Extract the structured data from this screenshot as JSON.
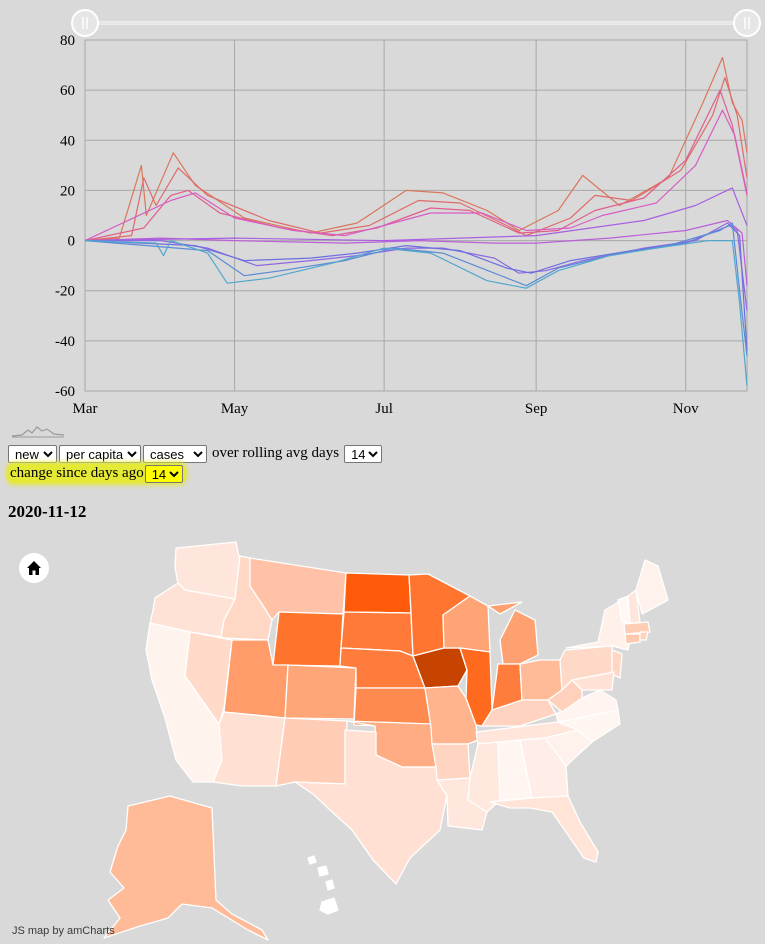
{
  "colors": {
    "background": "#d9d9d9",
    "grid": "#a8a8a8",
    "highlight": "#e4e836"
  },
  "chart_data": {
    "type": "line",
    "x_tick_labels": [
      "Mar",
      "May",
      "Jul",
      "Sep",
      "Nov"
    ],
    "y_ticks": [
      80,
      60,
      40,
      20,
      0,
      -20,
      -40,
      -60
    ],
    "ylim": [
      -60,
      80
    ],
    "x_range": [
      "2020-03-01",
      "2020-11-26"
    ],
    "series": [
      {
        "color": "#d9775c",
        "points": [
          [
            "2020-03-01",
            0
          ],
          [
            "2020-03-15",
            1
          ],
          [
            "2020-03-24",
            30
          ],
          [
            "2020-03-26",
            10
          ],
          [
            "2020-04-06",
            35
          ],
          [
            "2020-04-15",
            22
          ],
          [
            "2020-05-05",
            9
          ],
          [
            "2020-06-01",
            3
          ],
          [
            "2020-06-20",
            7
          ],
          [
            "2020-07-10",
            20
          ],
          [
            "2020-07-25",
            19
          ],
          [
            "2020-08-12",
            12
          ],
          [
            "2020-08-25",
            4
          ],
          [
            "2020-09-10",
            12
          ],
          [
            "2020-09-20",
            26
          ],
          [
            "2020-10-05",
            14
          ],
          [
            "2020-10-25",
            25
          ],
          [
            "2020-11-08",
            55
          ],
          [
            "2020-11-16",
            73
          ],
          [
            "2020-11-20",
            55
          ],
          [
            "2020-11-24",
            48
          ],
          [
            "2020-11-26",
            35
          ]
        ]
      },
      {
        "color": "#e06a6a",
        "points": [
          [
            "2020-03-01",
            0
          ],
          [
            "2020-03-20",
            2
          ],
          [
            "2020-03-25",
            25
          ],
          [
            "2020-03-30",
            14
          ],
          [
            "2020-04-08",
            29
          ],
          [
            "2020-04-20",
            18
          ],
          [
            "2020-05-15",
            8
          ],
          [
            "2020-06-05",
            3
          ],
          [
            "2020-06-25",
            6
          ],
          [
            "2020-07-15",
            16
          ],
          [
            "2020-08-01",
            15
          ],
          [
            "2020-08-20",
            6
          ],
          [
            "2020-08-28",
            2
          ],
          [
            "2020-09-15",
            9
          ],
          [
            "2020-09-25",
            18
          ],
          [
            "2020-10-10",
            16
          ],
          [
            "2020-10-30",
            28
          ],
          [
            "2020-11-12",
            50
          ],
          [
            "2020-11-17",
            65
          ],
          [
            "2020-11-22",
            50
          ],
          [
            "2020-11-26",
            25
          ]
        ]
      },
      {
        "color": "#e05e8c",
        "points": [
          [
            "2020-03-01",
            0
          ],
          [
            "2020-03-25",
            5
          ],
          [
            "2020-04-05",
            18
          ],
          [
            "2020-04-12",
            20
          ],
          [
            "2020-04-25",
            11
          ],
          [
            "2020-05-20",
            5
          ],
          [
            "2020-06-10",
            2
          ],
          [
            "2020-06-28",
            5
          ],
          [
            "2020-07-20",
            13
          ],
          [
            "2020-08-05",
            12
          ],
          [
            "2020-08-25",
            3
          ],
          [
            "2020-09-10",
            4
          ],
          [
            "2020-09-25",
            12
          ],
          [
            "2020-10-15",
            17
          ],
          [
            "2020-11-01",
            32
          ],
          [
            "2020-11-15",
            60
          ],
          [
            "2020-11-20",
            46
          ],
          [
            "2020-11-26",
            18
          ]
        ]
      },
      {
        "color": "#d85cc4",
        "points": [
          [
            "2020-03-01",
            0
          ],
          [
            "2020-04-05",
            16
          ],
          [
            "2020-04-15",
            19
          ],
          [
            "2020-05-01",
            9
          ],
          [
            "2020-05-25",
            4
          ],
          [
            "2020-06-15",
            2
          ],
          [
            "2020-07-01",
            6
          ],
          [
            "2020-07-20",
            11
          ],
          [
            "2020-08-10",
            11
          ],
          [
            "2020-08-28",
            4
          ],
          [
            "2020-09-15",
            5
          ],
          [
            "2020-09-28",
            10
          ],
          [
            "2020-10-20",
            15
          ],
          [
            "2020-11-05",
            30
          ],
          [
            "2020-11-16",
            52
          ],
          [
            "2020-11-21",
            42
          ],
          [
            "2020-11-26",
            19
          ]
        ]
      },
      {
        "color": "#bb5fd8",
        "points": [
          [
            "2020-03-01",
            0
          ],
          [
            "2020-04-01",
            1
          ],
          [
            "2020-05-01",
            0
          ],
          [
            "2020-06-15",
            -1
          ],
          [
            "2020-07-15",
            0
          ],
          [
            "2020-08-15",
            -1
          ],
          [
            "2020-09-01",
            -1
          ],
          [
            "2020-10-01",
            1
          ],
          [
            "2020-11-01",
            4
          ],
          [
            "2020-11-18",
            8
          ],
          [
            "2020-11-24",
            3
          ],
          [
            "2020-11-26",
            -18
          ]
        ]
      },
      {
        "color": "#a760e0",
        "points": [
          [
            "2020-03-01",
            0
          ],
          [
            "2020-05-01",
            1
          ],
          [
            "2020-07-01",
            0
          ],
          [
            "2020-09-01",
            2
          ],
          [
            "2020-10-15",
            8
          ],
          [
            "2020-11-05",
            14
          ],
          [
            "2020-11-20",
            21
          ],
          [
            "2020-11-26",
            6
          ]
        ]
      },
      {
        "color": "#8e68e2",
        "points": [
          [
            "2020-03-01",
            0
          ],
          [
            "2020-04-01",
            0
          ],
          [
            "2020-04-20",
            -3
          ],
          [
            "2020-05-10",
            -10
          ],
          [
            "2020-06-01",
            -8
          ],
          [
            "2020-06-20",
            -6
          ],
          [
            "2020-07-10",
            -3
          ],
          [
            "2020-07-25",
            -3
          ],
          [
            "2020-08-15",
            -7
          ],
          [
            "2020-08-25",
            -13
          ],
          [
            "2020-09-05",
            -12
          ],
          [
            "2020-09-20",
            -8
          ],
          [
            "2020-10-15",
            -3
          ],
          [
            "2020-11-05",
            0
          ],
          [
            "2020-11-18",
            7
          ],
          [
            "2020-11-22",
            4
          ],
          [
            "2020-11-26",
            -28
          ]
        ]
      },
      {
        "color": "#6c6fe0",
        "points": [
          [
            "2020-03-01",
            0
          ],
          [
            "2020-04-15",
            -2
          ],
          [
            "2020-05-05",
            -8
          ],
          [
            "2020-06-01",
            -7
          ],
          [
            "2020-06-20",
            -5
          ],
          [
            "2020-07-10",
            -2
          ],
          [
            "2020-08-01",
            -4
          ],
          [
            "2020-08-20",
            -11
          ],
          [
            "2020-08-30",
            -13
          ],
          [
            "2020-09-15",
            -8
          ],
          [
            "2020-10-10",
            -4
          ],
          [
            "2020-11-01",
            -1
          ],
          [
            "2020-11-19",
            6
          ],
          [
            "2020-11-23",
            2
          ],
          [
            "2020-11-26",
            -44
          ]
        ]
      },
      {
        "color": "#5b8bd6",
        "points": [
          [
            "2020-03-01",
            0
          ],
          [
            "2020-04-20",
            -4
          ],
          [
            "2020-05-05",
            -14
          ],
          [
            "2020-05-20",
            -12
          ],
          [
            "2020-06-15",
            -8
          ],
          [
            "2020-07-05",
            -3
          ],
          [
            "2020-07-25",
            -5
          ],
          [
            "2020-08-15",
            -13
          ],
          [
            "2020-08-28",
            -18
          ],
          [
            "2020-09-10",
            -11
          ],
          [
            "2020-10-01",
            -6
          ],
          [
            "2020-10-25",
            -2
          ],
          [
            "2020-11-15",
            4
          ],
          [
            "2020-11-20",
            7
          ],
          [
            "2020-11-23",
            -20
          ],
          [
            "2020-11-26",
            -46
          ]
        ]
      },
      {
        "color": "#52a7cc",
        "points": [
          [
            "2020-03-01",
            0
          ],
          [
            "2020-03-30",
            -1
          ],
          [
            "2020-04-02",
            -6
          ],
          [
            "2020-04-05",
            0
          ],
          [
            "2020-04-20",
            -5
          ],
          [
            "2020-04-28",
            -17
          ],
          [
            "2020-05-15",
            -15
          ],
          [
            "2020-06-10",
            -9
          ],
          [
            "2020-07-01",
            -3
          ],
          [
            "2020-07-20",
            -5
          ],
          [
            "2020-08-12",
            -16
          ],
          [
            "2020-08-28",
            -19
          ],
          [
            "2020-09-10",
            -12
          ],
          [
            "2020-10-01",
            -6
          ],
          [
            "2020-10-20",
            -3
          ],
          [
            "2020-11-10",
            0
          ],
          [
            "2020-11-20",
            0
          ],
          [
            "2020-11-23",
            -25
          ],
          [
            "2020-11-26",
            -58
          ]
        ]
      }
    ]
  },
  "controls": {
    "mode_value": "new",
    "norm_value": "per capita",
    "metric_value": "cases",
    "rolling_text": "over rolling avg days",
    "rolling_value": "14",
    "change_text": "change since days ago",
    "change_value": "14"
  },
  "date_label": "2020-11-12",
  "credit": "JS map by amCharts",
  "map_scale": {
    "low": "#fdeee8",
    "high": "#ff5500",
    "max_state": "#c74300"
  }
}
